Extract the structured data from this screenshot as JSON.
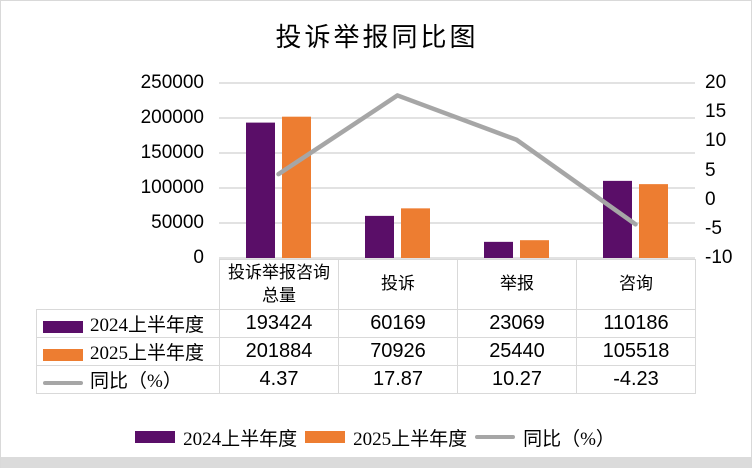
{
  "title": "投诉举报同比图",
  "colors": {
    "series2024": "#5a0e68",
    "series2025": "#ed7d31",
    "line": "#a6a6a6",
    "gridline": "#d9d9d9",
    "table_border": "#d9d9d9"
  },
  "chart_data": {
    "type": "bar+line combo",
    "title": "投诉举报同比图",
    "categories": [
      "投诉举报咨询总量",
      "投诉",
      "举报",
      "咨询"
    ],
    "series": [
      {
        "name": "2024上半年度",
        "type": "bar",
        "axis": "left",
        "color": "#5a0e68",
        "values": [
          193424,
          60169,
          23069,
          110186
        ]
      },
      {
        "name": "2025上半年度",
        "type": "bar",
        "axis": "left",
        "color": "#ed7d31",
        "values": [
          201884,
          70926,
          25440,
          105518
        ]
      },
      {
        "name": "同比（%）",
        "type": "line",
        "axis": "right",
        "color": "#a6a6a6",
        "values": [
          4.37,
          17.87,
          10.27,
          -4.23
        ]
      }
    ],
    "left_axis": {
      "min": 0,
      "max": 250000,
      "ticks": [
        250000,
        200000,
        150000,
        100000,
        50000,
        0
      ]
    },
    "right_axis": {
      "min": -10,
      "max": 20,
      "ticks": [
        20,
        15,
        10,
        5,
        0,
        -5,
        -10
      ]
    },
    "grid": "horizontal gridlines on (left axis)",
    "legend_position": "bottom"
  },
  "table": {
    "column_headers": [
      "投诉举报咨询总量",
      "投诉",
      "举报",
      "咨询"
    ],
    "rows": [
      {
        "label": "2024上半年度",
        "swatch": "bar-purple",
        "values": [
          "193424",
          "60169",
          "23069",
          "110186"
        ]
      },
      {
        "label": "2025上半年度",
        "swatch": "bar-orange",
        "values": [
          "201884",
          "70926",
          "25440",
          "105518"
        ]
      },
      {
        "label": "同比（%）",
        "swatch": "line-gray",
        "values": [
          "4.37",
          "17.87",
          "10.27",
          "-4.23"
        ]
      }
    ]
  },
  "legend": {
    "items": [
      {
        "label": "2024上半年度",
        "swatch": "bar-purple"
      },
      {
        "label": "2025上半年度",
        "swatch": "bar-orange"
      },
      {
        "label": "同比（%）",
        "swatch": "line-gray"
      }
    ]
  }
}
